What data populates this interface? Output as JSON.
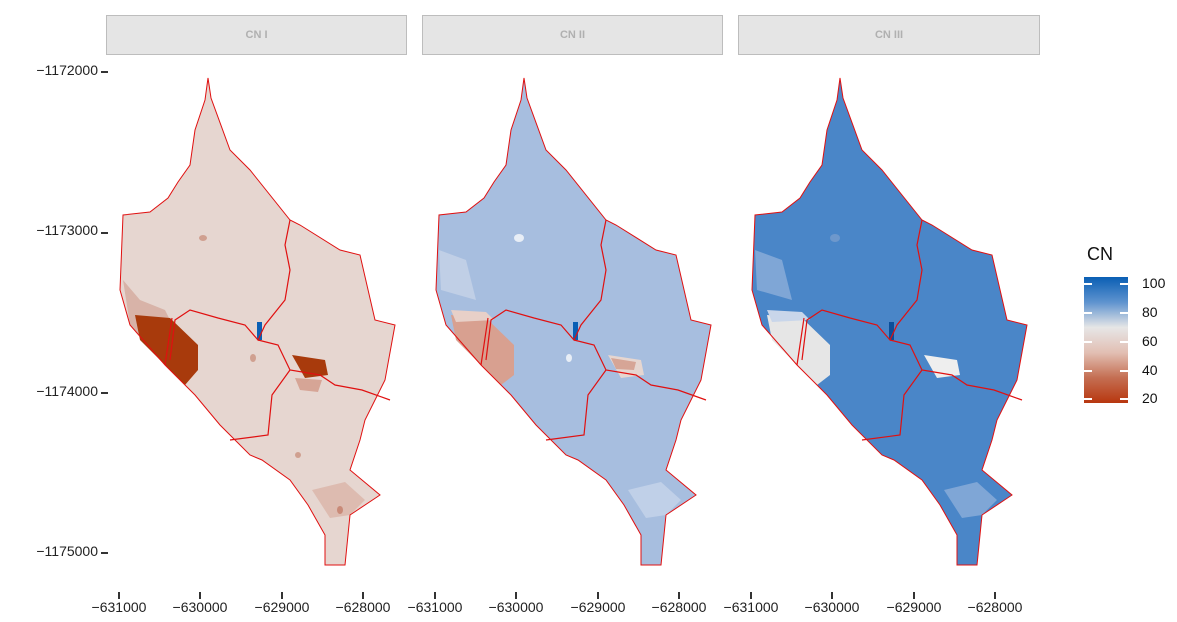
{
  "facets": [
    {
      "label": "CN I",
      "fill": "#e6d6d0"
    },
    {
      "label": "CN II",
      "fill": "#a7bedf"
    },
    {
      "label": "CN III",
      "fill": "#4a86c8"
    }
  ],
  "y_axis": {
    "ticks": [
      "-1172000",
      "-1173000",
      "-1174000",
      "-1175000"
    ]
  },
  "x_axis": {
    "ticks": [
      "-631000",
      "-630000",
      "-629000",
      "-628000"
    ]
  },
  "legend": {
    "title": "CN",
    "labels": [
      "100",
      "80",
      "60",
      "40",
      "20"
    ],
    "colors": [
      "#0a5fb4",
      "#5e93cf",
      "#e6e6e6",
      "#d9a89a",
      "#b8370f"
    ]
  },
  "boundary_color": "#e01010",
  "colors": {
    "low": "#a83a0c",
    "high": "#0a5fb4"
  }
}
